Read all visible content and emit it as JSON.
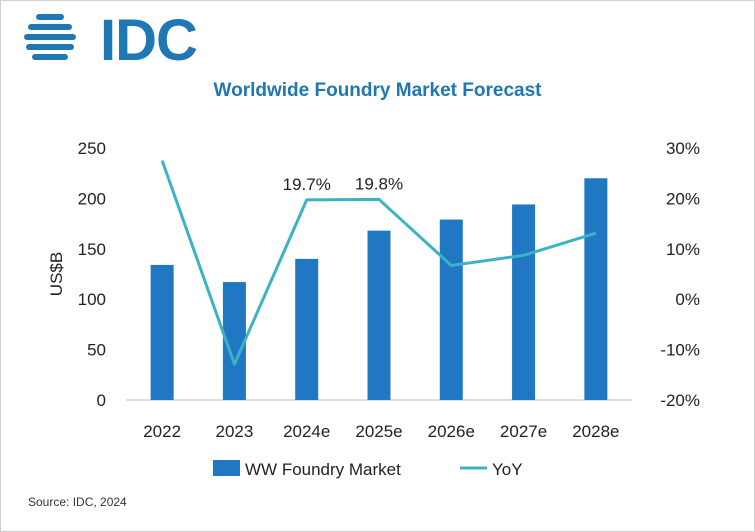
{
  "brand": {
    "logo_text": "IDC",
    "color": "#1f77b4"
  },
  "footer": {
    "source": "Source: IDC, 2024"
  },
  "chart_data": {
    "type": "bar",
    "title": "Worldwide Foundry Market Forecast",
    "categories": [
      "2022",
      "2023",
      "2024e",
      "2025e",
      "2026e",
      "2027e",
      "2028e"
    ],
    "series": [
      {
        "name": "WW Foundry Market",
        "type": "bar",
        "axis": "left",
        "color": "#1f78c1",
        "values": [
          134,
          117,
          140,
          168,
          179,
          194,
          220
        ]
      },
      {
        "name": "YoY",
        "type": "line",
        "axis": "right",
        "color": "#3bb3c7",
        "values": [
          27.5,
          -12.9,
          19.7,
          19.8,
          6.7,
          8.7,
          13.1
        ]
      }
    ],
    "ylabel": "US$B",
    "ylim": [
      0,
      250
    ],
    "y_ticks": [
      "0",
      "50",
      "100",
      "150",
      "200",
      "250"
    ],
    "y2lim": [
      -20,
      30
    ],
    "y2_ticks": [
      "-20%",
      "-10%",
      "0%",
      "10%",
      "20%",
      "30%"
    ],
    "annotations": [
      "19.7%",
      "19.8%"
    ],
    "grid": false,
    "legend_position": "bottom"
  }
}
